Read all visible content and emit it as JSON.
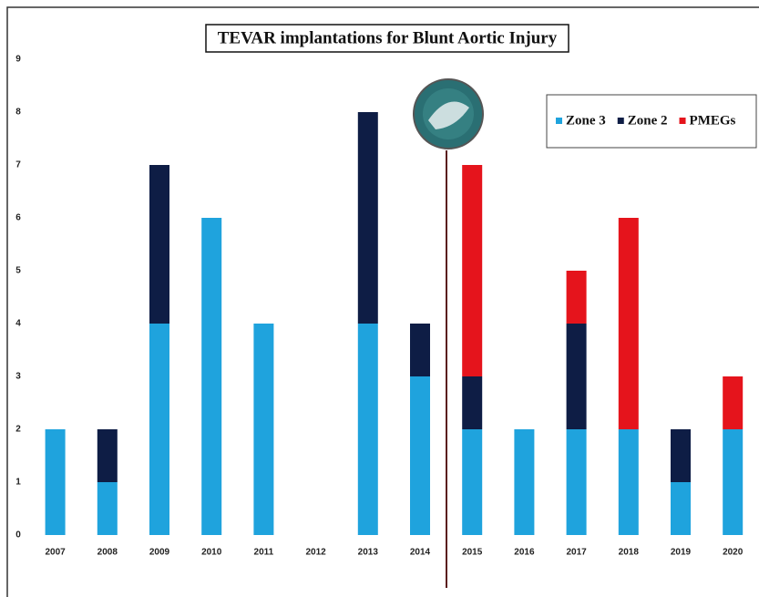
{
  "chart_data": {
    "type": "stacked_bar",
    "title": "TEVAR implantations for Blunt Aortic Injury",
    "categories": [
      "2007",
      "2008",
      "2009",
      "2010",
      "2011",
      "2012",
      "2013",
      "2014",
      "2015",
      "2016",
      "2017",
      "2018",
      "2019",
      "2020"
    ],
    "series": [
      {
        "name": "Zone 3",
        "color": "#1fa3dd",
        "values": [
          2,
          1,
          4,
          6,
          4,
          0,
          4,
          3,
          2,
          2,
          2,
          2,
          1,
          2
        ]
      },
      {
        "name": "Zone 2",
        "color": "#0e1d45",
        "values": [
          0,
          1,
          3,
          0,
          0,
          0,
          4,
          1,
          1,
          0,
          2,
          0,
          1,
          0
        ]
      },
      {
        "name": "PMEGs",
        "color": "#e5141c",
        "values": [
          0,
          0,
          0,
          0,
          0,
          0,
          0,
          0,
          4,
          0,
          1,
          4,
          0,
          1
        ]
      }
    ],
    "ylim": [
      0,
      9
    ],
    "yticks": [
      0,
      1,
      2,
      3,
      4,
      5,
      6,
      7,
      8,
      9
    ],
    "grid": false,
    "legend": "top-right"
  }
}
